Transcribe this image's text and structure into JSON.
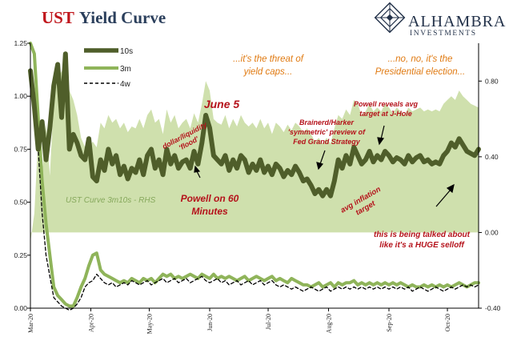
{
  "header": {
    "title_accent": "UST",
    "title_rest": "Yield Curve",
    "brand_name": "ALHAMBRA",
    "brand_sub": "INVESTMENTS",
    "logo_icon": "diamond-lattice-logo"
  },
  "chart_data": {
    "type": "line",
    "x_tick_labels": [
      "Mar-20",
      "Apr-20",
      "May-20",
      "Jun-20",
      "Jul-20",
      "Aug-20",
      "Sep-20",
      "Oct-20"
    ],
    "left_axis": {
      "range": [
        0,
        1.25
      ],
      "tick_labels": [
        "0.00",
        "0.25",
        "0.50",
        "0.75",
        "1.00",
        "1.25"
      ]
    },
    "right_axis": {
      "range": [
        -0.4,
        1.0
      ],
      "tick_labels": [
        "-0.40",
        "0.00",
        "0.40",
        "0.80"
      ]
    },
    "grid": false,
    "legend_position": "top-left",
    "x_days": [
      0,
      2,
      4,
      6,
      8,
      10,
      12,
      14,
      16,
      18,
      20,
      22,
      24,
      26,
      28,
      30,
      32,
      34,
      36,
      38,
      40,
      42,
      44,
      46,
      48,
      50,
      52,
      54,
      56,
      58,
      60,
      62,
      64,
      66,
      68,
      70,
      72,
      74,
      76,
      78,
      80,
      82,
      84,
      86,
      88,
      90,
      92,
      94,
      96,
      98,
      100,
      102,
      104,
      106,
      108,
      110,
      112,
      114,
      116,
      118,
      120,
      122,
      124,
      126,
      128,
      130,
      132,
      134,
      136,
      138,
      140,
      142,
      144,
      146,
      148,
      150,
      152,
      154,
      156,
      158,
      160,
      162,
      164,
      166,
      168,
      170,
      172,
      174,
      176,
      178,
      180,
      182,
      184,
      186,
      188,
      190,
      192,
      194,
      196,
      198,
      200,
      202,
      204,
      206,
      208,
      210,
      212,
      214,
      216,
      218,
      220,
      222,
      224,
      226,
      228,
      230
    ],
    "series": [
      {
        "name": "10s",
        "axis": "left",
        "color": "#4f5e2a",
        "values": [
          1.12,
          0.95,
          0.75,
          0.88,
          0.7,
          0.85,
          1.05,
          1.15,
          0.9,
          1.2,
          0.75,
          0.82,
          0.78,
          0.72,
          0.7,
          0.8,
          0.62,
          0.6,
          0.7,
          0.65,
          0.75,
          0.68,
          0.72,
          0.63,
          0.67,
          0.61,
          0.66,
          0.64,
          0.7,
          0.63,
          0.72,
          0.75,
          0.66,
          0.7,
          0.63,
          0.75,
          0.68,
          0.72,
          0.66,
          0.69,
          0.7,
          0.66,
          0.74,
          0.68,
          0.78,
          0.91,
          0.85,
          0.72,
          0.7,
          0.68,
          0.72,
          0.65,
          0.7,
          0.66,
          0.72,
          0.7,
          0.64,
          0.68,
          0.65,
          0.7,
          0.64,
          0.67,
          0.63,
          0.68,
          0.66,
          0.62,
          0.65,
          0.63,
          0.67,
          0.64,
          0.6,
          0.61,
          0.58,
          0.54,
          0.56,
          0.53,
          0.56,
          0.53,
          0.6,
          0.7,
          0.66,
          0.72,
          0.68,
          0.76,
          0.72,
          0.68,
          0.7,
          0.74,
          0.69,
          0.72,
          0.7,
          0.74,
          0.72,
          0.69,
          0.71,
          0.7,
          0.68,
          0.72,
          0.69,
          0.71,
          0.72,
          0.69,
          0.7,
          0.68,
          0.69,
          0.68,
          0.72,
          0.74,
          0.78,
          0.76,
          0.8,
          0.77,
          0.74,
          0.73,
          0.72,
          0.75
        ]
      },
      {
        "name": "3m",
        "axis": "left",
        "color": "#8fb45a",
        "values": [
          1.25,
          1.2,
          0.9,
          0.6,
          0.4,
          0.25,
          0.1,
          0.06,
          0.04,
          0.02,
          0.01,
          0.01,
          0.05,
          0.1,
          0.14,
          0.2,
          0.25,
          0.26,
          0.18,
          0.16,
          0.15,
          0.14,
          0.13,
          0.12,
          0.13,
          0.12,
          0.14,
          0.13,
          0.12,
          0.14,
          0.13,
          0.14,
          0.12,
          0.14,
          0.16,
          0.15,
          0.16,
          0.14,
          0.15,
          0.14,
          0.15,
          0.16,
          0.15,
          0.14,
          0.16,
          0.15,
          0.14,
          0.16,
          0.14,
          0.15,
          0.14,
          0.15,
          0.14,
          0.13,
          0.14,
          0.15,
          0.13,
          0.14,
          0.15,
          0.14,
          0.13,
          0.14,
          0.15,
          0.13,
          0.14,
          0.13,
          0.12,
          0.14,
          0.13,
          0.12,
          0.11,
          0.11,
          0.1,
          0.11,
          0.12,
          0.1,
          0.11,
          0.12,
          0.1,
          0.12,
          0.11,
          0.12,
          0.12,
          0.13,
          0.11,
          0.12,
          0.11,
          0.12,
          0.11,
          0.12,
          0.11,
          0.12,
          0.11,
          0.12,
          0.11,
          0.12,
          0.11,
          0.1,
          0.11,
          0.1,
          0.1,
          0.11,
          0.1,
          0.11,
          0.1,
          0.11,
          0.1,
          0.11,
          0.1,
          0.11,
          0.12,
          0.11,
          0.1,
          0.11,
          0.12,
          0.12
        ]
      },
      {
        "name": "4w",
        "axis": "left",
        "color": "#000000",
        "values": [
          1.05,
          0.98,
          0.75,
          0.45,
          0.25,
          0.15,
          0.05,
          0.03,
          0.01,
          0.0,
          -0.01,
          0.0,
          0.02,
          0.05,
          0.1,
          0.12,
          0.13,
          0.16,
          0.14,
          0.12,
          0.11,
          0.12,
          0.1,
          0.11,
          0.12,
          0.11,
          0.13,
          0.12,
          0.11,
          0.12,
          0.13,
          0.11,
          0.12,
          0.13,
          0.14,
          0.12,
          0.13,
          0.14,
          0.12,
          0.13,
          0.14,
          0.12,
          0.13,
          0.14,
          0.15,
          0.13,
          0.12,
          0.13,
          0.14,
          0.12,
          0.13,
          0.11,
          0.12,
          0.13,
          0.11,
          0.12,
          0.13,
          0.11,
          0.12,
          0.13,
          0.11,
          0.12,
          0.13,
          0.11,
          0.1,
          0.11,
          0.1,
          0.09,
          0.1,
          0.09,
          0.08,
          0.09,
          0.1,
          0.09,
          0.08,
          0.09,
          0.1,
          0.08,
          0.09,
          0.1,
          0.09,
          0.1,
          0.09,
          0.1,
          0.09,
          0.1,
          0.09,
          0.1,
          0.09,
          0.1,
          0.09,
          0.1,
          0.09,
          0.1,
          0.09,
          0.1,
          0.09,
          0.1,
          0.08,
          0.09,
          0.1,
          0.09,
          0.08,
          0.09,
          0.1,
          0.09,
          0.08,
          0.09,
          0.1,
          0.09,
          0.1,
          0.11,
          0.1,
          0.11,
          0.1,
          0.11
        ]
      },
      {
        "name": "UST Curve 3m10s - RHS",
        "axis": "right",
        "type": "area",
        "color": "#cfe0ad",
        "values": [
          -0.05,
          0.1,
          0.5,
          0.3,
          0.58,
          0.3,
          0.7,
          0.82,
          0.85,
          0.9,
          0.75,
          0.7,
          0.62,
          0.5,
          0.45,
          0.45,
          0.48,
          0.45,
          0.58,
          0.55,
          0.62,
          0.58,
          0.6,
          0.55,
          0.58,
          0.53,
          0.56,
          0.55,
          0.6,
          0.55,
          0.62,
          0.65,
          0.58,
          0.6,
          0.52,
          0.65,
          0.58,
          0.62,
          0.55,
          0.58,
          0.6,
          0.55,
          0.63,
          0.58,
          0.68,
          0.8,
          0.75,
          0.6,
          0.58,
          0.57,
          0.62,
          0.55,
          0.6,
          0.56,
          0.62,
          0.58,
          0.56,
          0.58,
          0.55,
          0.6,
          0.55,
          0.58,
          0.52,
          0.58,
          0.56,
          0.53,
          0.57,
          0.54,
          0.58,
          0.56,
          0.53,
          0.55,
          0.52,
          0.48,
          0.5,
          0.47,
          0.5,
          0.47,
          0.55,
          0.62,
          0.6,
          0.65,
          0.62,
          0.7,
          0.68,
          0.62,
          0.64,
          0.68,
          0.64,
          0.66,
          0.64,
          0.68,
          0.66,
          0.63,
          0.66,
          0.64,
          0.62,
          0.66,
          0.64,
          0.65,
          0.66,
          0.64,
          0.65,
          0.64,
          0.65,
          0.64,
          0.68,
          0.7,
          0.72,
          0.7,
          0.75,
          0.72,
          0.7,
          0.68,
          0.67,
          0.66
        ]
      }
    ],
    "annotations": [
      {
        "id": "threat",
        "color": "#e07a12",
        "lines": [
          "...it's the threat of",
          "yield caps..."
        ]
      },
      {
        "id": "election",
        "color": "#e07a12",
        "lines": [
          "...no, no, it's the",
          "Presidential election..."
        ]
      },
      {
        "id": "june5",
        "color": "#b5121b",
        "lines": [
          "June 5"
        ]
      },
      {
        "id": "flood",
        "color": "#b5121b",
        "lines": [
          "dollar/liquidity",
          "'flood'"
        ]
      },
      {
        "id": "powell60",
        "color": "#b5121b",
        "lines": [
          "Powell on 60",
          "Minutes"
        ]
      },
      {
        "id": "brainerd",
        "color": "#b5121b",
        "lines": [
          "Brainerd/Harker",
          "'symmetric' preview of",
          "Fed Grand Strategy"
        ]
      },
      {
        "id": "jhole",
        "color": "#b5121b",
        "lines": [
          "Powell reveals avg",
          "target at J-Hole"
        ]
      },
      {
        "id": "avginfl",
        "color": "#b5121b",
        "lines": [
          "avg inflation",
          "target"
        ]
      },
      {
        "id": "selloff",
        "color": "#b5121b",
        "lines": [
          "this is being talked about",
          "like it's a HUGE selloff"
        ]
      },
      {
        "id": "curve",
        "color": "#86a85c",
        "lines": [
          "UST  Curve 3m10s - RHS"
        ]
      }
    ]
  }
}
